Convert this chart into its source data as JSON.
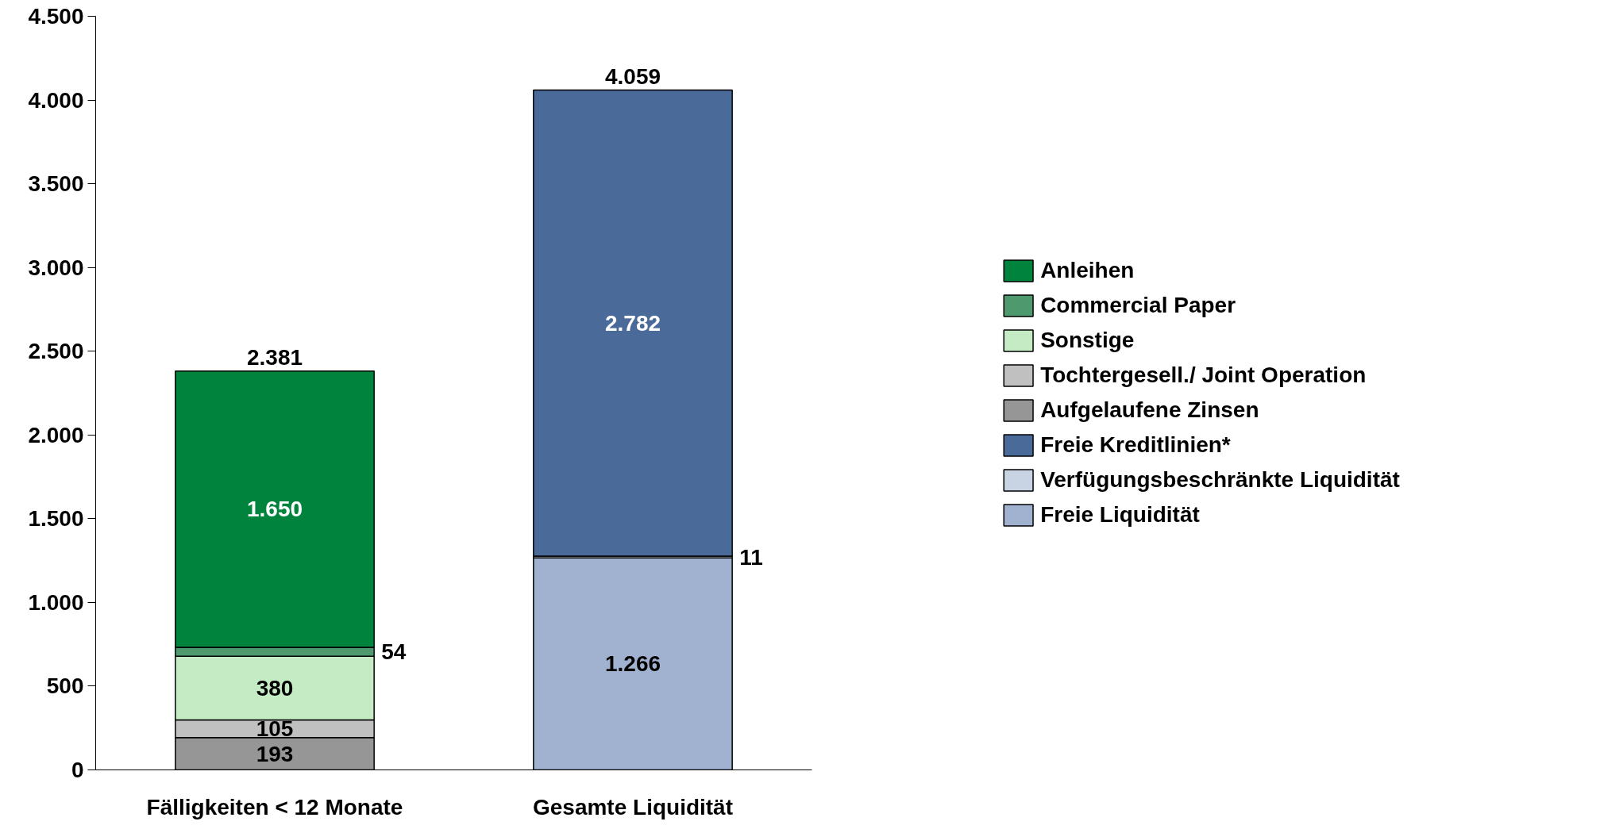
{
  "chart_data": {
    "type": "bar",
    "stacked": true,
    "categories": [
      "Fälligkeiten < 12 Monate",
      "Gesamte Liquidität"
    ],
    "series": [
      {
        "name": "Aufgelaufene Zinsen",
        "color": "#969696",
        "values": [
          193,
          null
        ],
        "value_labels": [
          "193",
          null
        ]
      },
      {
        "name": "Tochtergesell./ Joint Operation",
        "color": "#c0c0c0",
        "values": [
          105,
          null
        ],
        "value_labels": [
          "105",
          null
        ]
      },
      {
        "name": "Sonstige",
        "color": "#c5ebc5",
        "values": [
          380,
          null
        ],
        "value_labels": [
          "380",
          null
        ]
      },
      {
        "name": "Commercial Paper",
        "color": "#4e9a6e",
        "values": [
          54,
          null
        ],
        "value_labels": [
          "54",
          null
        ]
      },
      {
        "name": "Anleihen",
        "color": "#00843d",
        "values": [
          1650,
          null
        ],
        "value_labels": [
          "1.650",
          null
        ]
      },
      {
        "name": "Freie Liquidität",
        "color": "#a0b2d0",
        "values": [
          null,
          1266
        ],
        "value_labels": [
          null,
          "1.266"
        ]
      },
      {
        "name": "Verfügungsbeschränkte Liquidität",
        "color": "#c8d3e3",
        "values": [
          null,
          11
        ],
        "value_labels": [
          null,
          "11"
        ]
      },
      {
        "name": "Freie Kreditlinien*",
        "color": "#4a6b9a",
        "values": [
          null,
          2782
        ],
        "value_labels": [
          null,
          "2.782"
        ]
      }
    ],
    "totals": [
      "2.381",
      "4.059"
    ],
    "ylim": [
      0,
      4500
    ],
    "yticks": [
      {
        "value": 0,
        "label": "0"
      },
      {
        "value": 500,
        "label": "500"
      },
      {
        "value": 1000,
        "label": "1.000"
      },
      {
        "value": 1500,
        "label": "1.500"
      },
      {
        "value": 2000,
        "label": "2.000"
      },
      {
        "value": 2500,
        "label": "2.500"
      },
      {
        "value": 3000,
        "label": "3.000"
      },
      {
        "value": 3500,
        "label": "3.500"
      },
      {
        "value": 4000,
        "label": "4.000"
      },
      {
        "value": 4500,
        "label": "4.500"
      }
    ],
    "grid": false,
    "legend": "right"
  }
}
